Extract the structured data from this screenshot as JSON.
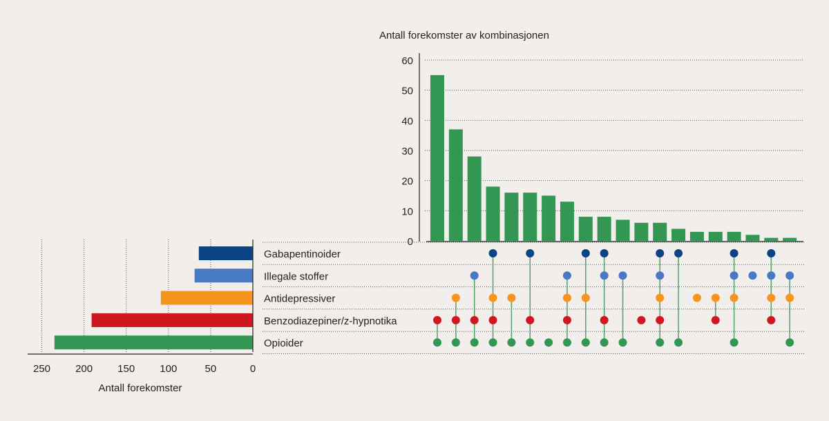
{
  "chart_data": {
    "type": "upset",
    "intersection_chart": {
      "type": "bar",
      "title": "Antall forekomster av kombinasjonen",
      "values": [
        55,
        37,
        28,
        18,
        16,
        16,
        15,
        13,
        8,
        8,
        7,
        6,
        6,
        4,
        3,
        3,
        3,
        2,
        1,
        1
      ],
      "ylim": [
        0,
        60
      ],
      "yticks": [
        0,
        10,
        20,
        30,
        40,
        50,
        60
      ],
      "grid": true,
      "bar_color": "#339652"
    },
    "sets": [
      {
        "name": "Gabapentinoider",
        "total": 64,
        "color": "#0b4384"
      },
      {
        "name": "Illegale stoffer",
        "total": 69,
        "color": "#4a78c2"
      },
      {
        "name": "Antidepressiver",
        "total": 109,
        "color": "#f7941d"
      },
      {
        "name": "Benzodiazepiner/z-hypnotika",
        "total": 191,
        "color": "#d0161f"
      },
      {
        "name": "Opioider",
        "total": 235,
        "color": "#339652"
      }
    ],
    "set_chart": {
      "type": "bar",
      "orientation": "horizontal-reversed",
      "xlabel": "Antall forekomster",
      "xlim": [
        0,
        250
      ],
      "xticks": [
        250,
        200,
        150,
        100,
        50,
        0
      ],
      "grid": true
    },
    "matrix": [
      [
        "Benzodiazepiner/z-hypnotika",
        "Opioider"
      ],
      [
        "Antidepressiver",
        "Benzodiazepiner/z-hypnotika",
        "Opioider"
      ],
      [
        "Illegale stoffer",
        "Benzodiazepiner/z-hypnotika",
        "Opioider"
      ],
      [
        "Gabapentinoider",
        "Antidepressiver",
        "Benzodiazepiner/z-hypnotika",
        "Opioider"
      ],
      [
        "Antidepressiver",
        "Opioider"
      ],
      [
        "Gabapentinoider",
        "Benzodiazepiner/z-hypnotika",
        "Opioider"
      ],
      [
        "Opioider"
      ],
      [
        "Illegale stoffer",
        "Antidepressiver",
        "Benzodiazepiner/z-hypnotika",
        "Opioider"
      ],
      [
        "Gabapentinoider",
        "Antidepressiver",
        "Opioider"
      ],
      [
        "Gabapentinoider",
        "Illegale stoffer",
        "Benzodiazepiner/z-hypnotika",
        "Opioider"
      ],
      [
        "Illegale stoffer",
        "Opioider"
      ],
      [
        "Benzodiazepiner/z-hypnotika"
      ],
      [
        "Gabapentinoider",
        "Illegale stoffer",
        "Antidepressiver",
        "Benzodiazepiner/z-hypnotika",
        "Opioider"
      ],
      [
        "Gabapentinoider",
        "Opioider"
      ],
      [
        "Antidepressiver"
      ],
      [
        "Antidepressiver",
        "Benzodiazepiner/z-hypnotika"
      ],
      [
        "Gabapentinoider",
        "Illegale stoffer",
        "Antidepressiver",
        "Opioider"
      ],
      [
        "Illegale stoffer"
      ],
      [
        "Gabapentinoider",
        "Illegale stoffer",
        "Antidepressiver",
        "Benzodiazepiner/z-hypnotika"
      ],
      [
        "Illegale stoffer",
        "Antidepressiver",
        "Opioider"
      ]
    ],
    "connector_color": "#339652"
  }
}
